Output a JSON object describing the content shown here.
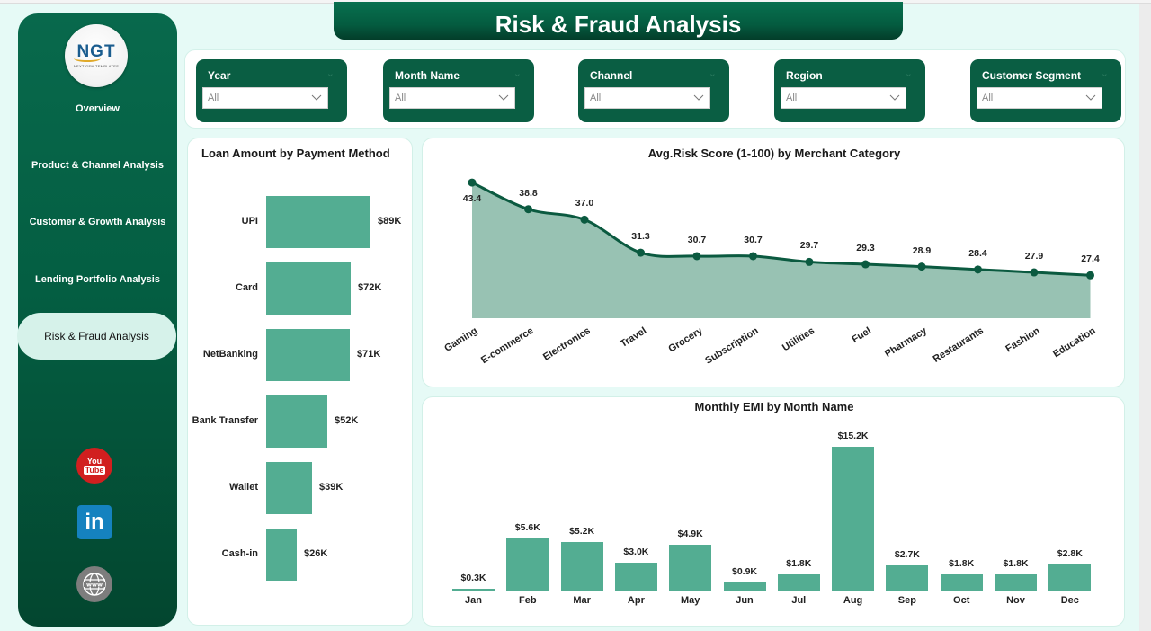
{
  "header": {
    "title": "Risk & Fraud Analysis"
  },
  "sidebar": {
    "logo": {
      "text": "NGT",
      "subtext": "NEXT GEN TEMPLATES"
    },
    "items": [
      {
        "label": "Overview"
      },
      {
        "label": "Product & Channel Analysis"
      },
      {
        "label": "Customer & Growth Analysis"
      },
      {
        "label": "Lending Portfolio Analysis"
      },
      {
        "label": "Risk & Fraud Analysis",
        "active": true
      }
    ],
    "social": [
      {
        "icon": "youtube-icon",
        "text_top": "You",
        "text_bottom": "Tube"
      },
      {
        "icon": "linkedin-icon",
        "text": "in"
      },
      {
        "icon": "www-globe-icon"
      }
    ]
  },
  "filters": [
    {
      "label": "Year",
      "value": "All"
    },
    {
      "label": "Month Name",
      "value": "All"
    },
    {
      "label": "Channel",
      "value": "All"
    },
    {
      "label": "Region",
      "value": "All"
    },
    {
      "label": "Customer Segment",
      "value": "All"
    }
  ],
  "colors": {
    "primary_green": "#0a5e43",
    "bar_green": "#53ad92",
    "area_fill": "#98c2b3",
    "line_green": "#0b5a40",
    "background": "#e6faf6"
  },
  "chart_data": [
    {
      "type": "bar",
      "orientation": "horizontal",
      "title": "Loan Amount by Payment Method",
      "categories": [
        "UPI",
        "Card",
        "NetBanking",
        "Bank Transfer",
        "Wallet",
        "Cash-in"
      ],
      "values": [
        89,
        72,
        71,
        52,
        39,
        26
      ],
      "labels": [
        "$89K",
        "$72K",
        "$71K",
        "$52K",
        "$39K",
        "$26K"
      ],
      "unit": "$K",
      "xlabel": "",
      "ylabel": ""
    },
    {
      "type": "area",
      "title": "Avg.Risk Score (1-100) by Merchant Category",
      "categories": [
        "Gaming",
        "E-commerce",
        "Electronics",
        "Travel",
        "Grocery",
        "Subscription",
        "Utilities",
        "Fuel",
        "Pharmacy",
        "Restaurants",
        "Fashion",
        "Education"
      ],
      "values": [
        43.4,
        38.8,
        37.0,
        31.3,
        30.7,
        30.7,
        29.7,
        29.3,
        28.9,
        28.4,
        27.9,
        27.4
      ],
      "labels": [
        "43.4",
        "38.8",
        "37.0",
        "31.3",
        "30.7",
        "30.7",
        "29.7",
        "29.3",
        "28.9",
        "28.4",
        "27.9",
        "27.4"
      ],
      "xlabel": "",
      "ylabel": "",
      "grid": false
    },
    {
      "type": "bar",
      "orientation": "vertical",
      "title": "Monthly EMI by Month Name",
      "categories": [
        "Jan",
        "Feb",
        "Mar",
        "Apr",
        "May",
        "Jun",
        "Jul",
        "Aug",
        "Sep",
        "Oct",
        "Nov",
        "Dec"
      ],
      "values": [
        0.3,
        5.6,
        5.2,
        3.0,
        4.9,
        0.9,
        1.8,
        15.2,
        2.7,
        1.8,
        1.8,
        2.8
      ],
      "labels": [
        "$0.3K",
        "$5.6K",
        "$5.2K",
        "$3.0K",
        "$4.9K",
        "$0.9K",
        "$1.8K",
        "$15.2K",
        "$2.7K",
        "$1.8K",
        "$1.8K",
        "$2.8K"
      ],
      "unit": "$K",
      "xlabel": "",
      "ylabel": ""
    }
  ]
}
